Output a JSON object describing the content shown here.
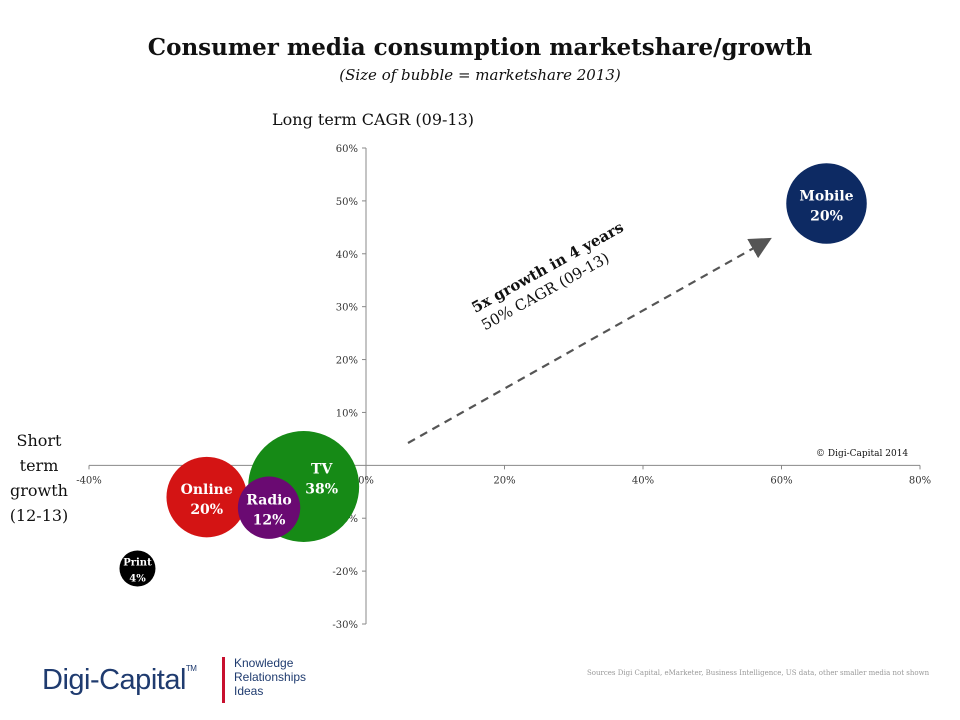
{
  "title": "Consumer media consumption marketshare/growth",
  "subtitle": "(Size of bubble = marketshare 2013)",
  "annotation": {
    "line1": "5x growth in 4 years",
    "line2": "50% CAGR (09-13)"
  },
  "copyright": "© Digi-Capital 2014",
  "sources": "Sources Digi Capital, eMarketer, Business Intelligence,  US data, other smaller media not shown",
  "logo": {
    "name": "Digi-Capital",
    "tm": "TM",
    "tagline": [
      "Knowledge",
      "Relationships",
      "Ideas"
    ],
    "colors": {
      "text": "#1f3b6f",
      "bar": "#c8102e"
    }
  },
  "chart_data": {
    "type": "bubble",
    "title": "Consumer media consumption marketshare/growth",
    "subtitle": "(Size of bubble = marketshare 2013)",
    "xlabel": "Short term growth (12-13)",
    "ylabel": "Long term CAGR (09-13)",
    "xlim": [
      -40,
      80
    ],
    "ylim": [
      -30,
      60
    ],
    "xticks": [
      "-40%",
      "-20%",
      "0%",
      "20%",
      "40%",
      "60%",
      "80%"
    ],
    "yticks": [
      "60%",
      "50%",
      "40%",
      "30%",
      "20%",
      "10%",
      "-10%",
      "-20%",
      "-30%"
    ],
    "grid": false,
    "series": [
      {
        "name": "TV",
        "share": 38,
        "share_label": "38%",
        "x": -9,
        "y": -4,
        "color": "#168a16"
      },
      {
        "name": "Online",
        "share": 20,
        "share_label": "20%",
        "x": -23,
        "y": -6,
        "color": "#d41414"
      },
      {
        "name": "Radio",
        "share": 12,
        "share_label": "12%",
        "x": -14,
        "y": -8,
        "color": "#6a0a72"
      },
      {
        "name": "Print",
        "share": 4,
        "share_label": "4%",
        "x": -33,
        "y": -19.5,
        "color": "#000000"
      },
      {
        "name": "Mobile",
        "share": 20,
        "share_label": "20%",
        "x": 66.5,
        "y": 49.5,
        "color": "#0d2a63"
      }
    ]
  }
}
